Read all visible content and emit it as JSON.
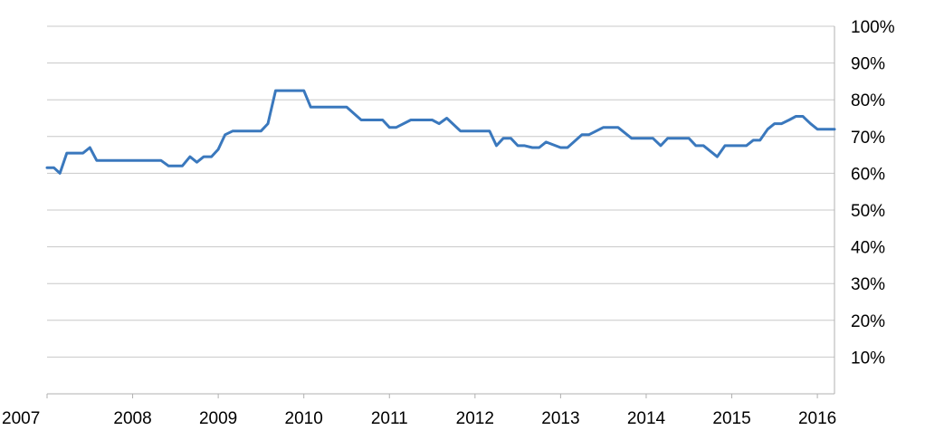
{
  "chart_data": {
    "type": "line",
    "title": "",
    "xlabel": "",
    "ylabel": "",
    "grid": true,
    "y_axis_side": "right",
    "xlim": [
      2007,
      2016.2
    ],
    "ylim": [
      0,
      100
    ],
    "x_ticks": [
      2007,
      2008,
      2009,
      2010,
      2011,
      2012,
      2013,
      2014,
      2015,
      2016
    ],
    "x_tick_labels": [
      "2007",
      "2008",
      "2009",
      "2010",
      "2011",
      "2012",
      "2013",
      "2014",
      "2015",
      "2016"
    ],
    "y_ticks": [
      10,
      20,
      30,
      40,
      50,
      60,
      70,
      80,
      90,
      100
    ],
    "y_tick_labels": [
      "10%",
      "20%",
      "30%",
      "40%",
      "50%",
      "60%",
      "70%",
      "80%",
      "90%",
      "100%"
    ],
    "colors": {
      "line": "#3a78bd",
      "grid": "#c8c8c8",
      "text": "#000000"
    },
    "series": [
      {
        "x": [
          2007.0,
          2007.08,
          2007.15,
          2007.23,
          2007.32,
          2007.42,
          2007.5,
          2007.58,
          2007.7,
          2007.85,
          2008.0,
          2008.15,
          2008.25,
          2008.33,
          2008.42,
          2008.5,
          2008.58,
          2008.67,
          2008.75,
          2008.83,
          2008.92,
          2009.0,
          2009.08,
          2009.17,
          2009.33,
          2009.42,
          2009.5,
          2009.58,
          2009.67,
          2009.83,
          2009.92,
          2010.0,
          2010.08,
          2010.25,
          2010.5,
          2010.67,
          2010.83,
          2010.92,
          2011.0,
          2011.08,
          2011.25,
          2011.42,
          2011.5,
          2011.58,
          2011.67,
          2011.83,
          2012.0,
          2012.08,
          2012.17,
          2012.25,
          2012.33,
          2012.42,
          2012.5,
          2012.58,
          2012.67,
          2012.75,
          2012.83,
          2013.0,
          2013.08,
          2013.25,
          2013.33,
          2013.5,
          2013.58,
          2013.67,
          2013.83,
          2013.92,
          2014.0,
          2014.08,
          2014.17,
          2014.25,
          2014.5,
          2014.58,
          2014.67,
          2014.83,
          2014.92,
          2015.0,
          2015.08,
          2015.17,
          2015.25,
          2015.33,
          2015.42,
          2015.5,
          2015.58,
          2015.67,
          2015.75,
          2015.83,
          2015.92,
          2016.0,
          2016.08,
          2016.2
        ],
        "values": [
          61.5,
          61.5,
          60,
          65.5,
          65.5,
          65.5,
          67,
          63.5,
          63.5,
          63.5,
          63.5,
          63.5,
          63.5,
          63.5,
          62,
          62,
          62,
          64.5,
          63,
          64.5,
          64.5,
          66.5,
          70.5,
          71.5,
          71.5,
          71.5,
          71.5,
          73.5,
          82.5,
          82.5,
          82.5,
          82.5,
          78,
          78,
          78,
          74.5,
          74.5,
          74.5,
          72.5,
          72.5,
          74.5,
          74.5,
          74.5,
          73.5,
          75,
          71.5,
          71.5,
          71.5,
          71.5,
          67.5,
          69.5,
          69.5,
          67.5,
          67.5,
          67,
          67,
          68.5,
          67,
          67,
          70.5,
          70.5,
          72.5,
          72.5,
          72.5,
          69.5,
          69.5,
          69.5,
          69.5,
          67.5,
          69.5,
          69.5,
          67.5,
          67.5,
          64.5,
          67.5,
          67.5,
          67.5,
          67.5,
          69,
          69,
          72,
          73.5,
          73.5,
          74.5,
          75.5,
          75.5,
          73.5,
          72,
          72,
          72
        ]
      }
    ]
  }
}
